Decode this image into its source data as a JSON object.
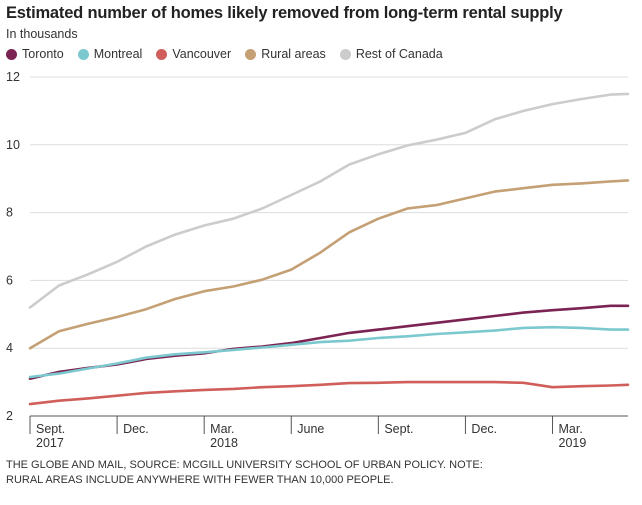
{
  "chart_data": {
    "type": "line",
    "title": "Estimated number of homes likely removed from long-term rental supply",
    "subtitle": "In thousands",
    "ylabel": "In thousands",
    "xlabel": "",
    "ylim": [
      2,
      12
    ],
    "yticks": [
      2,
      4,
      6,
      8,
      10,
      12
    ],
    "grid": true,
    "legend_position": "top-left",
    "x_unit": "months since Sept. 1, 2017",
    "xlim": [
      0,
      20.6
    ],
    "xticks": [
      {
        "x": 0,
        "line1": "Sept.",
        "line2": "2017"
      },
      {
        "x": 3,
        "line1": "Dec.",
        "line2": ""
      },
      {
        "x": 6,
        "line1": "Mar.",
        "line2": "2018"
      },
      {
        "x": 9,
        "line1": "June",
        "line2": ""
      },
      {
        "x": 12,
        "line1": "Sept.",
        "line2": ""
      },
      {
        "x": 15,
        "line1": "Dec.",
        "line2": ""
      },
      {
        "x": 18,
        "line1": "Mar.",
        "line2": "2019"
      }
    ],
    "x": [
      0,
      1,
      2,
      3,
      4,
      5,
      6,
      7,
      8,
      9,
      10,
      11,
      12,
      13,
      14,
      15,
      16,
      17,
      18,
      19,
      20,
      20.6
    ],
    "series": [
      {
        "name": "Toronto",
        "color": "#7b2352",
        "values": [
          3.1,
          3.3,
          3.42,
          3.52,
          3.68,
          3.78,
          3.85,
          3.98,
          4.05,
          4.15,
          4.3,
          4.45,
          4.55,
          4.65,
          4.75,
          4.85,
          4.95,
          5.05,
          5.12,
          5.18,
          5.25,
          5.25
        ]
      },
      {
        "name": "Montreal",
        "color": "#7cc8cf",
        "values": [
          3.15,
          3.25,
          3.4,
          3.55,
          3.72,
          3.82,
          3.88,
          3.95,
          4.02,
          4.1,
          4.18,
          4.22,
          4.3,
          4.35,
          4.42,
          4.47,
          4.52,
          4.6,
          4.62,
          4.6,
          4.55,
          4.55
        ]
      },
      {
        "name": "Vancouver",
        "color": "#d05f5c",
        "values": [
          2.35,
          2.45,
          2.52,
          2.6,
          2.68,
          2.73,
          2.77,
          2.8,
          2.85,
          2.88,
          2.92,
          2.97,
          2.98,
          3.0,
          3.0,
          3.0,
          3.0,
          2.98,
          2.85,
          2.88,
          2.9,
          2.92
        ]
      },
      {
        "name": "Rural areas",
        "color": "#c4a074",
        "values": [
          4.0,
          4.5,
          4.72,
          4.92,
          5.15,
          5.45,
          5.68,
          5.82,
          6.02,
          6.32,
          6.82,
          7.42,
          7.82,
          8.12,
          8.22,
          8.42,
          8.62,
          8.72,
          8.82,
          8.86,
          8.92,
          8.95
        ]
      },
      {
        "name": "Rest of Canada",
        "color": "#cccccc",
        "values": [
          5.2,
          5.85,
          6.18,
          6.55,
          7.0,
          7.35,
          7.62,
          7.82,
          8.12,
          8.52,
          8.92,
          9.42,
          9.72,
          9.98,
          10.15,
          10.35,
          10.75,
          11.0,
          11.2,
          11.35,
          11.48,
          11.5
        ]
      }
    ]
  },
  "source_lines": [
    "THE GLOBE AND MAIL, SOURCE: MCGILL UNIVERSITY SCHOOL OF URBAN POLICY. NOTE:",
    "RURAL AREAS INCLUDE ANYWHERE WITH FEWER THAN 10,000 PEOPLE."
  ]
}
